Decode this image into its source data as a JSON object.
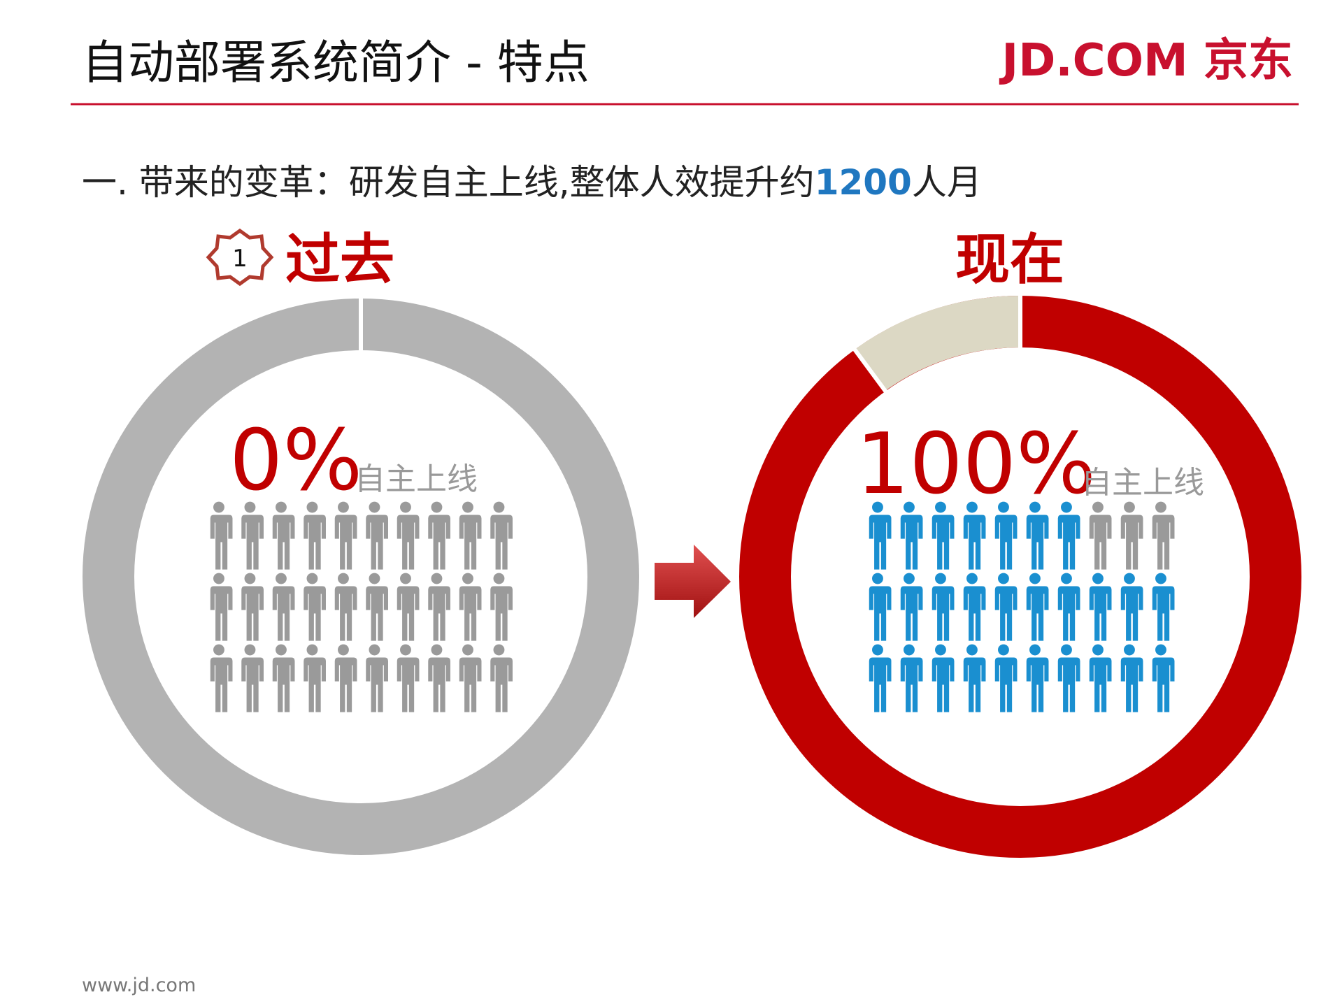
{
  "header": {
    "title": "自动部署系统简介 - 特点",
    "logo": "JD.COM 京东"
  },
  "subtitle": {
    "prefix": "一. 带来的变革：研发自主上线,整体人效提升约",
    "highlight": "1200",
    "suffix": "人月"
  },
  "past": {
    "badge": "1",
    "label": "过去",
    "percent": "0%",
    "caption": "自主上线"
  },
  "now": {
    "label": "现在",
    "percent": "100%",
    "caption": "自主上线"
  },
  "footer": "www.jd.com"
}
